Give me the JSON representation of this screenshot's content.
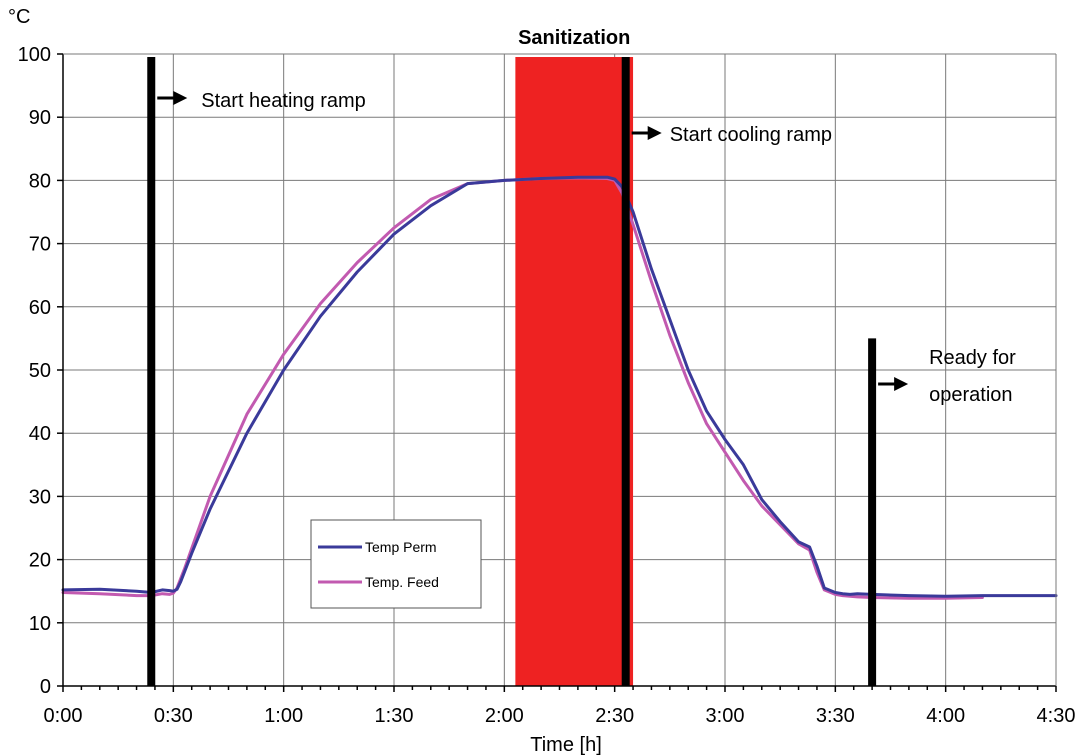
{
  "chart_data": {
    "type": "line",
    "ylabel": "°C",
    "xlabel": "Time  [h]",
    "xlim": [
      0,
      270
    ],
    "ylim": [
      0,
      100
    ],
    "grid": true,
    "x_ticks": [
      {
        "value": 0,
        "label": "0:00"
      },
      {
        "value": 30,
        "label": "0:30"
      },
      {
        "value": 60,
        "label": "1:00"
      },
      {
        "value": 90,
        "label": "1:30"
      },
      {
        "value": 120,
        "label": "2:00"
      },
      {
        "value": 150,
        "label": "2:30"
      },
      {
        "value": 180,
        "label": "3:00"
      },
      {
        "value": 210,
        "label": "3:30"
      },
      {
        "value": 240,
        "label": "4:00"
      },
      {
        "value": 270,
        "label": "4:30"
      }
    ],
    "y_ticks": [
      0,
      10,
      20,
      30,
      40,
      50,
      60,
      70,
      80,
      90,
      100
    ],
    "legend": {
      "placement": "lower-left"
    },
    "series": [
      {
        "name": "Temp Perm",
        "color": "#3a3a9a",
        "x": [
          0,
          10,
          20,
          24,
          27,
          29,
          30,
          31,
          32,
          35,
          40,
          50,
          60,
          70,
          80,
          90,
          100,
          110,
          120,
          130,
          140,
          148,
          150,
          152,
          155,
          160,
          165,
          170,
          175,
          180,
          185,
          190,
          195,
          200,
          203,
          205,
          207,
          210,
          212,
          214,
          216,
          220,
          230,
          240,
          250,
          260,
          270
        ],
        "y": [
          15.2,
          15.3,
          15.0,
          14.8,
          15.2,
          15.1,
          15.0,
          15.3,
          16.5,
          21,
          28,
          40,
          50,
          58.5,
          65.5,
          71.5,
          76,
          79.5,
          80,
          80.3,
          80.5,
          80.5,
          80.2,
          79,
          75,
          66,
          58,
          50,
          43.5,
          39,
          35,
          29.5,
          26,
          22.8,
          22,
          19,
          15.5,
          14.8,
          14.6,
          14.5,
          14.6,
          14.5,
          14.3,
          14.2,
          14.3,
          14.3,
          14.3
        ]
      },
      {
        "name": "Temp. Feed",
        "color": "#c25ab0",
        "x": [
          0,
          10,
          20,
          24,
          27,
          29,
          30,
          31,
          33,
          40,
          50,
          60,
          70,
          80,
          90,
          100,
          110,
          120,
          130,
          140,
          148,
          150,
          152,
          155,
          160,
          165,
          170,
          175,
          180,
          185,
          190,
          195,
          200,
          203,
          205,
          207,
          210,
          212,
          214,
          216,
          220,
          230,
          240,
          250
        ],
        "y": [
          14.8,
          14.6,
          14.3,
          14.3,
          14.6,
          14.5,
          14.7,
          15.5,
          18.5,
          30,
          43,
          52.5,
          60.5,
          67,
          72.5,
          77,
          79.5,
          80,
          80.3,
          80.4,
          80.3,
          80.0,
          78,
          73,
          64,
          55.5,
          48,
          41.5,
          37,
          32.5,
          28.5,
          25.5,
          22.5,
          21.5,
          18,
          15.2,
          14.5,
          14.3,
          14.2,
          14.1,
          14.0,
          13.9,
          13.9,
          14.0
        ]
      }
    ],
    "vertical_markers": [
      {
        "x": 24,
        "ymax": 100,
        "label": "Start heating ramp",
        "color": "#000000"
      },
      {
        "x": 153,
        "ymax": 100,
        "label": "Start cooling ramp",
        "color": "#000000"
      },
      {
        "x": 220,
        "ymax": 55,
        "label_lines": [
          "Ready for",
          "operation"
        ],
        "color": "#000000"
      }
    ],
    "bands": [
      {
        "x0": 123,
        "x1": 155,
        "label": "Sanitization",
        "color": "#ee2222"
      }
    ]
  }
}
